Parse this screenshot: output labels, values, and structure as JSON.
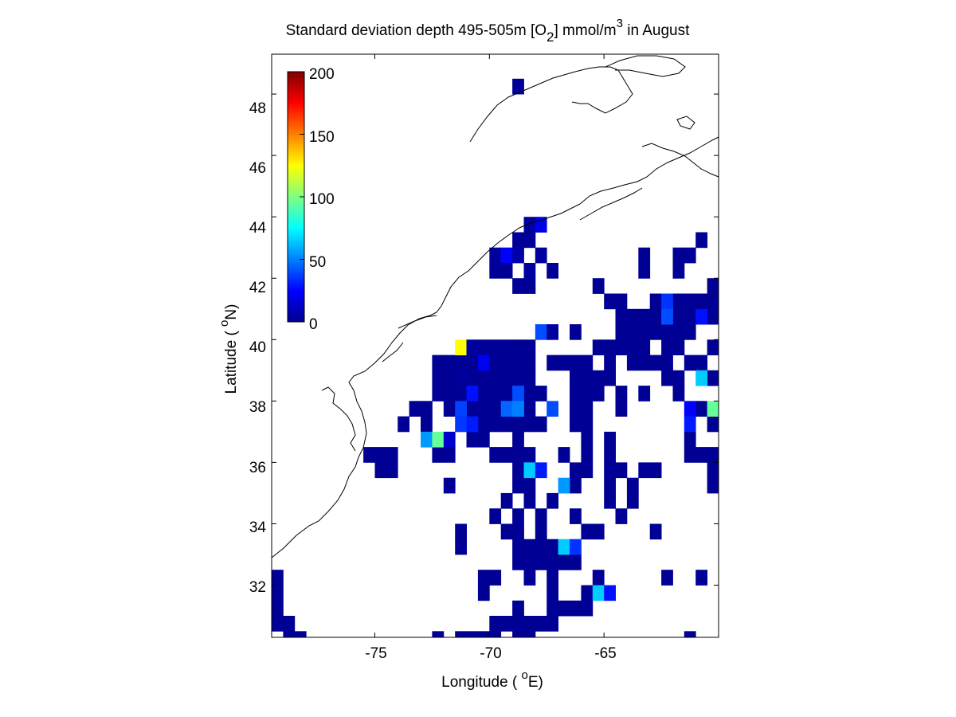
{
  "title": {
    "main": "Standard deviation depth 495-505m [O",
    "sub": "2",
    "rest": "] mmol/m",
    "sup": "3",
    "tail": " in August"
  },
  "axes": {
    "xlabel_pre": "Longitude ( ",
    "xlabel_sup": "o",
    "xlabel_post": "E)",
    "ylabel_pre": "Latitude ( ",
    "ylabel_sup": "o",
    "ylabel_post": "N)",
    "x_ticks": [
      "-75",
      "-70",
      "-65"
    ],
    "y_ticks": [
      "32",
      "34",
      "36",
      "38",
      "40",
      "42",
      "44",
      "46",
      "48"
    ]
  },
  "colorbar": {
    "ticks": [
      "0",
      "50",
      "100",
      "150",
      "200"
    ],
    "range": [
      0,
      200
    ],
    "colormap": "jet"
  },
  "chart_data": {
    "type": "heatmap",
    "title": "Standard deviation depth 495-505m [O2] mmol/m3 in August",
    "xlabel": "Longitude ( oE)",
    "ylabel": "Latitude ( oN)",
    "xlim": [
      -79.5,
      -60
    ],
    "ylim": [
      30.3,
      49.3
    ],
    "cell_size_deg": 0.5,
    "value_range": [
      0,
      200
    ],
    "cells": [
      {
        "lon": -68.75,
        "lat": 48.25,
        "v": 5
      },
      {
        "lon": -68.25,
        "lat": 43.75,
        "v": 6
      },
      {
        "lon": -67.75,
        "lat": 43.75,
        "v": 20
      },
      {
        "lon": -68.75,
        "lat": 43.25,
        "v": 5
      },
      {
        "lon": -68.25,
        "lat": 43.25,
        "v": 4
      },
      {
        "lon": -69.75,
        "lat": 42.75,
        "v": 6
      },
      {
        "lon": -69.25,
        "lat": 42.75,
        "v": 25
      },
      {
        "lon": -68.75,
        "lat": 42.75,
        "v": 8
      },
      {
        "lon": -67.75,
        "lat": 42.75,
        "v": 6
      },
      {
        "lon": -69.75,
        "lat": 42.25,
        "v": 5
      },
      {
        "lon": -69.25,
        "lat": 42.25,
        "v": 4
      },
      {
        "lon": -68.25,
        "lat": 42.25,
        "v": 6
      },
      {
        "lon": -67.25,
        "lat": 42.25,
        "v": 5
      },
      {
        "lon": -68.75,
        "lat": 41.75,
        "v": 5
      },
      {
        "lon": -68.25,
        "lat": 41.75,
        "v": 4
      },
      {
        "lon": -67.75,
        "lat": 40.25,
        "v": 40
      },
      {
        "lon": -67.25,
        "lat": 40.25,
        "v": 6
      },
      {
        "lon": -71.25,
        "lat": 39.75,
        "v": 125
      },
      {
        "lon": -70.75,
        "lat": 39.75,
        "v": 6
      },
      {
        "lon": -70.25,
        "lat": 39.75,
        "v": 4
      },
      {
        "lon": -69.75,
        "lat": 39.75,
        "v": 5
      },
      {
        "lon": -70.25,
        "lat": 39.25,
        "v": 22
      },
      {
        "lon": -69.75,
        "lat": 39.25,
        "v": 4
      },
      {
        "lon": -71.25,
        "lat": 38.75,
        "v": 6
      },
      {
        "lon": -70.75,
        "lat": 38.75,
        "v": 4
      },
      {
        "lon": -70.75,
        "lat": 38.25,
        "v": 28
      },
      {
        "lon": -68.75,
        "lat": 38.25,
        "v": 40
      },
      {
        "lon": -71.25,
        "lat": 37.75,
        "v": 38
      },
      {
        "lon": -69.25,
        "lat": 37.75,
        "v": 45
      },
      {
        "lon": -68.75,
        "lat": 37.75,
        "v": 50
      },
      {
        "lon": -67.25,
        "lat": 37.75,
        "v": 40
      },
      {
        "lon": -71.25,
        "lat": 37.25,
        "v": 36
      },
      {
        "lon": -70.75,
        "lat": 37.25,
        "v": 30
      },
      {
        "lon": -72.75,
        "lat": 36.75,
        "v": 55
      },
      {
        "lon": -72.25,
        "lat": 36.75,
        "v": 95
      },
      {
        "lon": -71.75,
        "lat": 36.75,
        "v": 15
      },
      {
        "lon": -68.25,
        "lat": 35.75,
        "v": 65
      },
      {
        "lon": -67.75,
        "lat": 35.75,
        "v": 30
      },
      {
        "lon": -66.75,
        "lat": 35.25,
        "v": 55
      },
      {
        "lon": -66.75,
        "lat": 33.25,
        "v": 65
      },
      {
        "lon": -66.25,
        "lat": 33.25,
        "v": 35
      },
      {
        "lon": -65.25,
        "lat": 31.75,
        "v": 65
      },
      {
        "lon": -64.75,
        "lat": 31.75,
        "v": 28
      },
      {
        "lon": -62.25,
        "lat": 41.25,
        "v": 35
      },
      {
        "lon": -62.25,
        "lat": 40.75,
        "v": 40
      },
      {
        "lon": -60.75,
        "lat": 40.75,
        "v": 28
      },
      {
        "lon": -60.75,
        "lat": 38.75,
        "v": 65
      },
      {
        "lon": -60.25,
        "lat": 37.75,
        "v": 95
      },
      {
        "lon": -61.25,
        "lat": 37.75,
        "v": 25
      },
      {
        "lon": -61.25,
        "lat": 37.25,
        "v": 30
      }
    ]
  }
}
